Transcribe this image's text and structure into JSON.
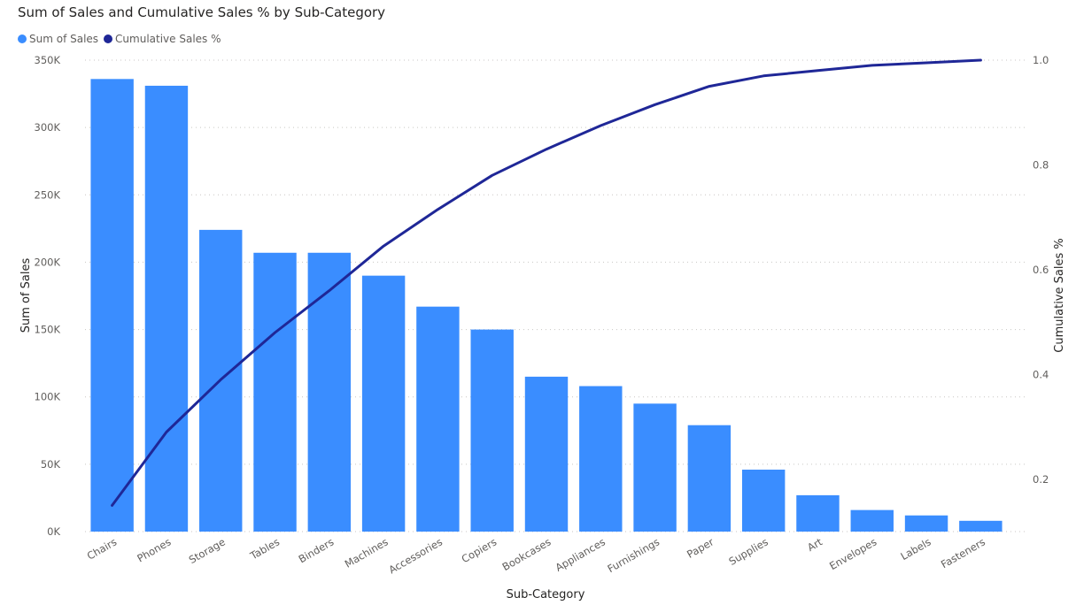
{
  "chart_data": {
    "type": "bar",
    "title": "Sum of Sales and Cumulative Sales % by Sub-Category",
    "xlabel": "Sub-Category",
    "ylabel": "Sum of Sales",
    "y2label": "Cumulative Sales %",
    "ylim": [
      0,
      350000
    ],
    "y2lim": [
      0.1,
      1.0
    ],
    "grid": true,
    "legend_position": "top-left",
    "categories": [
      "Chairs",
      "Phones",
      "Storage",
      "Tables",
      "Binders",
      "Machines",
      "Accessories",
      "Copiers",
      "Bookcases",
      "Appliances",
      "Furnishings",
      "Paper",
      "Supplies",
      "Art",
      "Envelopes",
      "Labels",
      "Fasteners"
    ],
    "y_ticks": [
      "0K",
      "50K",
      "100K",
      "150K",
      "200K",
      "250K",
      "300K",
      "350K"
    ],
    "y2_ticks": [
      "0.2",
      "0.4",
      "0.6",
      "0.8",
      "1.0"
    ],
    "series": [
      {
        "name": "Sum of Sales",
        "kind": "bar",
        "color": "#3a8dff",
        "values": [
          336000,
          331000,
          224000,
          207000,
          207000,
          190000,
          167000,
          150000,
          115000,
          108000,
          95000,
          79000,
          46000,
          27000,
          16000,
          12000,
          8000
        ]
      },
      {
        "name": "Cumulative Sales %",
        "kind": "line",
        "axis": "right",
        "color": "#1f2797",
        "values": [
          0.15,
          0.29,
          0.39,
          0.48,
          0.56,
          0.645,
          0.715,
          0.78,
          0.83,
          0.875,
          0.915,
          0.95,
          0.97,
          0.98,
          0.99,
          0.995,
          1.0
        ]
      }
    ]
  }
}
